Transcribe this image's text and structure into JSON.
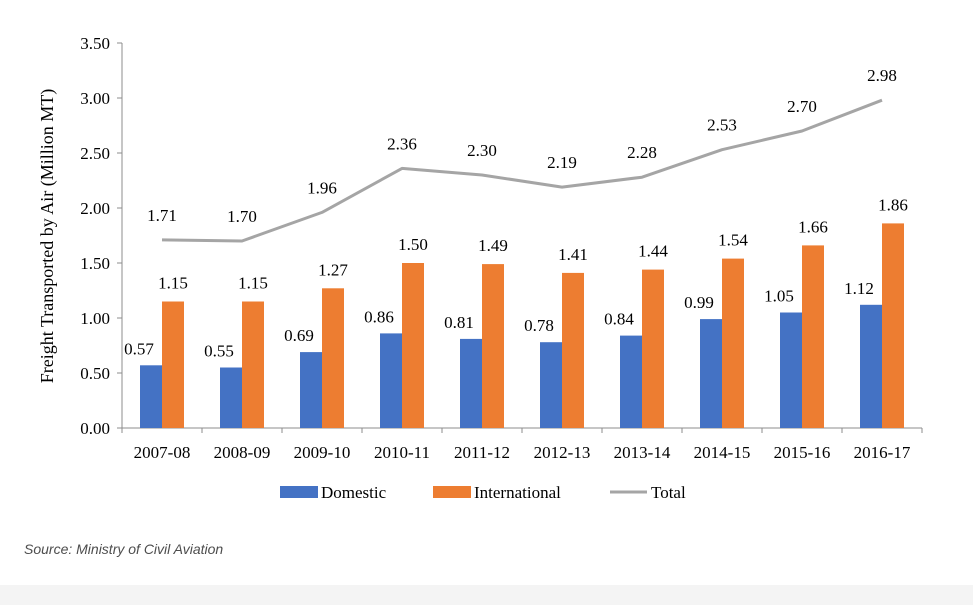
{
  "chart_data": {
    "type": "bar",
    "categories": [
      "2007-08",
      "2008-09",
      "2009-10",
      "2010-11",
      "2011-12",
      "2012-13",
      "2013-14",
      "2014-15",
      "2015-16",
      "2016-17"
    ],
    "series": [
      {
        "name": "Domestic",
        "type": "bar",
        "color": "#4472c4",
        "values": [
          0.57,
          0.55,
          0.69,
          0.86,
          0.81,
          0.78,
          0.84,
          0.99,
          1.05,
          1.12
        ],
        "labels": [
          "0.57",
          "0.55",
          "0.69",
          "0.86",
          "0.81",
          "0.78",
          "0.84",
          "0.99",
          "1.05",
          "1.12"
        ]
      },
      {
        "name": "International",
        "type": "bar",
        "color": "#ed7d31",
        "values": [
          1.15,
          1.15,
          1.27,
          1.5,
          1.49,
          1.41,
          1.44,
          1.54,
          1.66,
          1.86
        ],
        "labels": [
          "1.15",
          "1.15",
          "1.27",
          "1.50",
          "1.49",
          "1.41",
          "1.44",
          "1.54",
          "1.66",
          "1.86"
        ]
      },
      {
        "name": "Total",
        "type": "line",
        "color": "#a5a5a5",
        "values": [
          1.71,
          1.7,
          1.96,
          2.36,
          2.3,
          2.19,
          2.28,
          2.53,
          2.7,
          2.98
        ],
        "labels": [
          "1.71",
          "1.70",
          "1.96",
          "2.36",
          "2.30",
          "2.19",
          "2.28",
          "2.53",
          "2.70",
          "2.98"
        ]
      }
    ],
    "ylabel": "Freight Transported by Air (Million MT)",
    "xlabel": "",
    "ylim": [
      0,
      3.5
    ],
    "yticks": [
      "0.00",
      "0.50",
      "1.00",
      "1.50",
      "2.00",
      "2.50",
      "3.00",
      "3.50"
    ],
    "legend_position": "bottom",
    "grid": false
  },
  "source_text": "Source: Ministry of Civil Aviation"
}
